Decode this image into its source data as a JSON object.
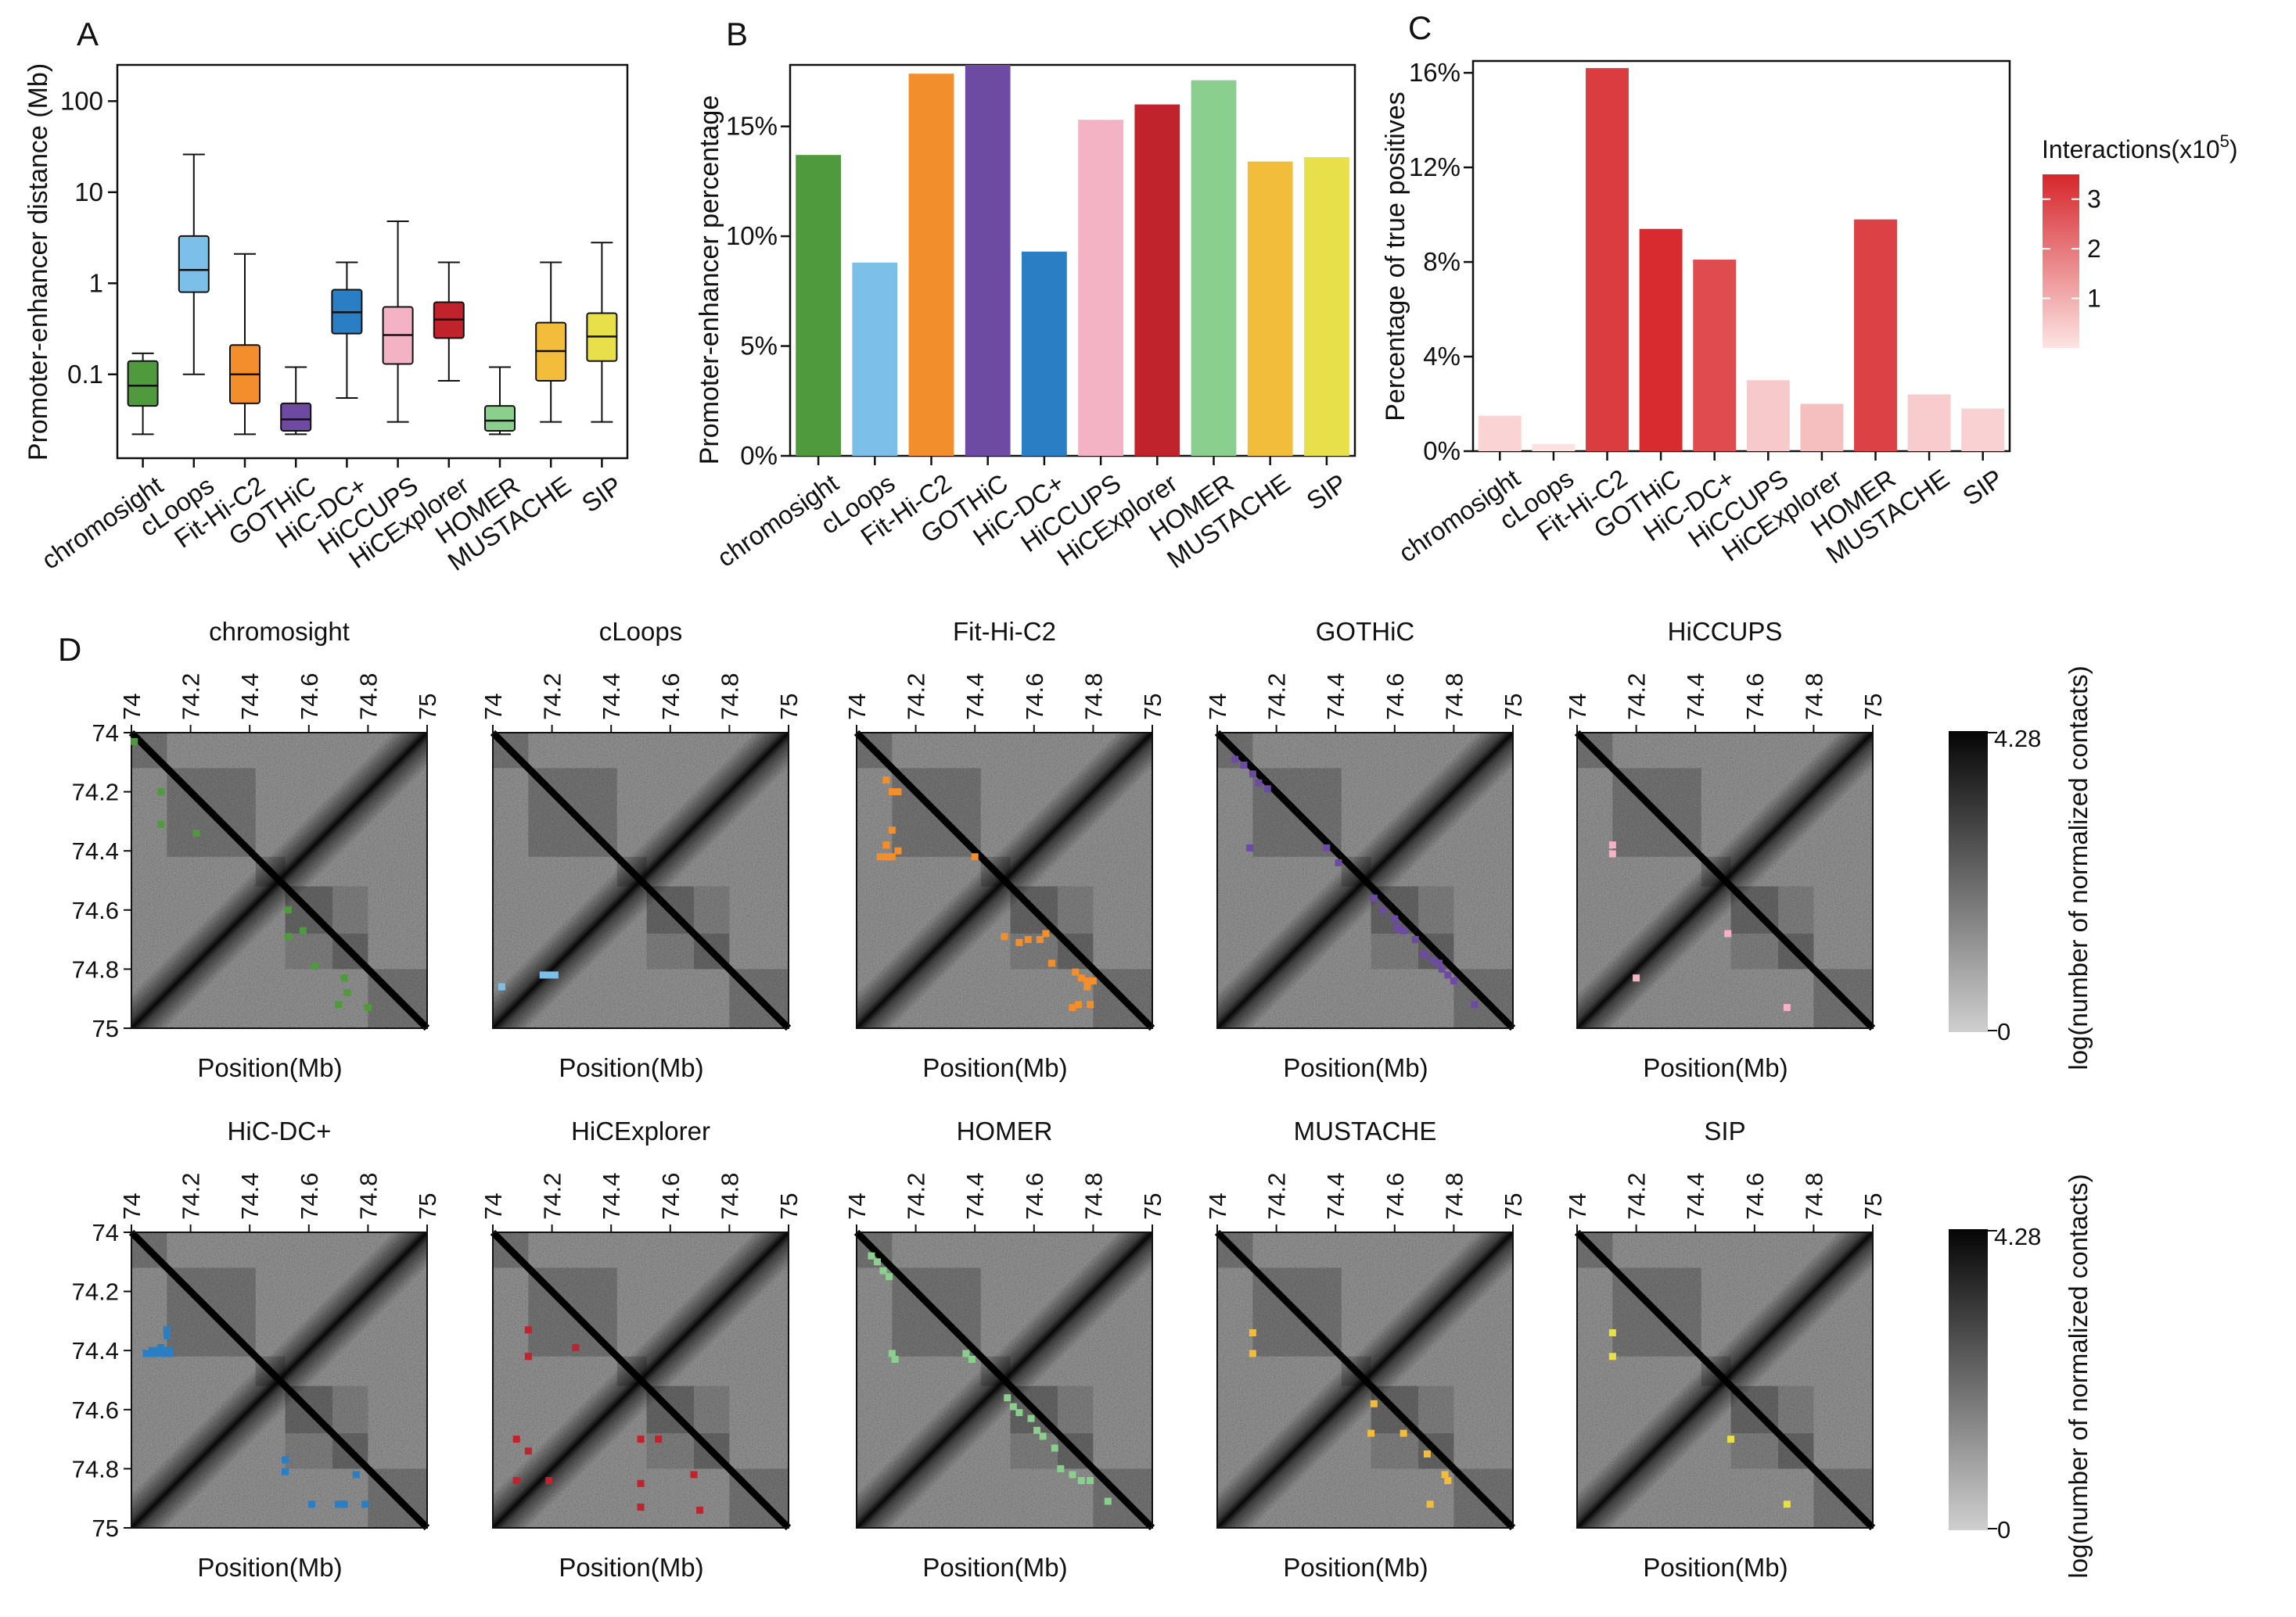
{
  "colors": {
    "methods": {
      "chromosight": "#4e9a3c",
      "cLoops": "#7cc0ea",
      "Fit-Hi-C2": "#f28e2b",
      "GOTHiC": "#6e4ba3",
      "HiC-DC+": "#2a7ec4",
      "HiCCUPS": "#f4b2c5",
      "HiCExplorer": "#c0232c",
      "HOMER": "#8bcf8e",
      "MUSTACHE": "#f2bd3a",
      "SIP": "#e8e04a"
    },
    "heat_low": "#fde4e4",
    "heat_high": "#d6262b"
  },
  "panels": {
    "A": {
      "letter": "A",
      "chart_data": {
        "type": "boxplot",
        "ylabel": "Promoter-enhancer distance (Mb)",
        "yscale": "log10",
        "ylim": [
          0.012,
          250
        ],
        "yticks": [
          0.1,
          1,
          10,
          100
        ],
        "ytick_labels": [
          "0.1",
          "1",
          "10",
          "100"
        ],
        "categories": [
          "chromosight",
          "cLoops",
          "Fit-Hi-C2",
          "GOTHiC",
          "HiC-DC+",
          "HiCCUPS",
          "HiCExplorer",
          "HOMER",
          "MUSTACHE",
          "SIP"
        ],
        "boxes": [
          {
            "min": 0.022,
            "q1": 0.045,
            "median": 0.075,
            "q3": 0.14,
            "max": 0.17
          },
          {
            "min": 0.1,
            "q1": 0.8,
            "median": 1.4,
            "q3": 3.3,
            "max": 26
          },
          {
            "min": 0.022,
            "q1": 0.048,
            "median": 0.1,
            "q3": 0.21,
            "max": 2.1
          },
          {
            "min": 0.022,
            "q1": 0.024,
            "median": 0.032,
            "q3": 0.048,
            "max": 0.12
          },
          {
            "min": 0.055,
            "q1": 0.28,
            "median": 0.48,
            "q3": 0.85,
            "max": 1.7
          },
          {
            "min": 0.03,
            "q1": 0.13,
            "median": 0.27,
            "q3": 0.55,
            "max": 4.8
          },
          {
            "min": 0.085,
            "q1": 0.25,
            "median": 0.4,
            "q3": 0.62,
            "max": 1.7
          },
          {
            "min": 0.022,
            "q1": 0.024,
            "median": 0.031,
            "q3": 0.045,
            "max": 0.12
          },
          {
            "min": 0.03,
            "q1": 0.085,
            "median": 0.18,
            "q3": 0.37,
            "max": 1.7
          },
          {
            "min": 0.03,
            "q1": 0.14,
            "median": 0.26,
            "q3": 0.47,
            "max": 2.8
          }
        ]
      }
    },
    "B": {
      "letter": "B",
      "chart_data": {
        "type": "bar",
        "ylabel": "Promoter-enhancer percentage",
        "ylim": [
          0,
          17.8
        ],
        "yticks": [
          0,
          5,
          10,
          15
        ],
        "ytick_labels": [
          "0%",
          "5%",
          "10%",
          "15%"
        ],
        "categories": [
          "chromosight",
          "cLoops",
          "Fit-Hi-C2",
          "GOTHiC",
          "HiC-DC+",
          "HiCCUPS",
          "HiCExplorer",
          "HOMER",
          "MUSTACHE",
          "SIP"
        ],
        "values": [
          13.7,
          8.8,
          17.4,
          17.8,
          9.3,
          15.3,
          16.0,
          17.1,
          13.4,
          13.6
        ]
      }
    },
    "C": {
      "letter": "C",
      "chart_data": {
        "type": "bar",
        "ylabel": "Percentage of true positives",
        "ylim": [
          0,
          16.5
        ],
        "yticks": [
          0,
          4,
          8,
          12,
          16
        ],
        "ytick_labels": [
          "0%",
          "4%",
          "8%",
          "12%",
          "16%"
        ],
        "categories": [
          "chromosight",
          "cLoops",
          "Fit-Hi-C2",
          "GOTHiC",
          "HiC-DC+",
          "HiCCUPS",
          "HiCExplorer",
          "HOMER",
          "MUSTACHE",
          "SIP"
        ],
        "values": [
          1.5,
          0.3,
          16.2,
          9.4,
          8.1,
          3.0,
          2.0,
          9.8,
          2.4,
          1.8
        ],
        "interactions_x1e5": [
          0.3,
          0.05,
          3.1,
          3.4,
          2.8,
          0.5,
          0.7,
          3.0,
          0.45,
          0.35
        ],
        "legend": {
          "title": "Interactions(x10",
          "title_exp": "5",
          "title_close": ")",
          "ticks": [
            "3",
            "2",
            "1"
          ],
          "range": [
            0,
            3.5
          ]
        }
      }
    },
    "D": {
      "letter": "D",
      "axis_ticks": [
        "74",
        "74.2",
        "74.4",
        "74.6",
        "74.8",
        "75"
      ],
      "tick_values": [
        74,
        74.2,
        74.4,
        74.6,
        74.8,
        75
      ],
      "range_mb": [
        74,
        75
      ],
      "xlabel": "Position(Mb)",
      "colorbar": {
        "label": "log(number of normalized contacts)",
        "max": "4.28",
        "min": "0"
      },
      "heatmaps": [
        {
          "title": "chromosight",
          "method": "chromosight",
          "loops": [
            [
              74.01,
              74.03
            ],
            [
              74.1,
              74.2
            ],
            [
              74.1,
              74.31
            ],
            [
              74.22,
              74.34
            ],
            [
              74.53,
              74.6
            ],
            [
              74.53,
              74.69
            ],
            [
              74.58,
              74.67
            ],
            [
              74.62,
              74.79
            ],
            [
              74.72,
              74.83
            ],
            [
              74.73,
              74.88
            ],
            [
              74.8,
              74.93
            ],
            [
              74.7,
              74.92
            ]
          ]
        },
        {
          "title": "cLoops",
          "method": "cLoops",
          "loops": [
            [
              74.17,
              74.82
            ],
            [
              74.19,
              74.82
            ],
            [
              74.21,
              74.82
            ],
            [
              74.03,
              74.86
            ]
          ]
        },
        {
          "title": "Fit-Hi-C2",
          "method": "Fit-Hi-C2",
          "loops": [
            [
              74.1,
              74.16
            ],
            [
              74.12,
              74.2
            ],
            [
              74.14,
              74.2
            ],
            [
              74.1,
              74.38
            ],
            [
              74.12,
              74.33
            ],
            [
              74.08,
              74.42
            ],
            [
              74.1,
              74.42
            ],
            [
              74.12,
              74.42
            ],
            [
              74.14,
              74.4
            ],
            [
              74.4,
              74.42
            ],
            [
              74.5,
              74.69
            ],
            [
              74.55,
              74.71
            ],
            [
              74.58,
              74.7
            ],
            [
              74.62,
              74.7
            ],
            [
              74.64,
              74.68
            ],
            [
              74.66,
              74.78
            ],
            [
              74.74,
              74.81
            ],
            [
              74.76,
              74.83
            ],
            [
              74.78,
              74.84
            ],
            [
              74.78,
              74.86
            ],
            [
              74.8,
              74.84
            ],
            [
              74.75,
              74.92
            ],
            [
              74.73,
              74.93
            ],
            [
              74.79,
              74.92
            ]
          ]
        },
        {
          "title": "GOTHiC",
          "method": "GOTHiC",
          "loops": [
            [
              74.06,
              74.09
            ],
            [
              74.09,
              74.11
            ],
            [
              74.12,
              74.14
            ],
            [
              74.14,
              74.17
            ],
            [
              74.17,
              74.19
            ],
            [
              74.11,
              74.39
            ],
            [
              74.37,
              74.39
            ],
            [
              74.41,
              74.44
            ],
            [
              74.53,
              74.56
            ],
            [
              74.56,
              74.6
            ],
            [
              74.6,
              74.63
            ],
            [
              74.61,
              74.66
            ],
            [
              74.63,
              74.67
            ],
            [
              74.67,
              74.7
            ],
            [
              74.7,
              74.75
            ],
            [
              74.73,
              74.77
            ],
            [
              74.75,
              74.78
            ],
            [
              74.76,
              74.8
            ],
            [
              74.78,
              74.82
            ],
            [
              74.8,
              74.84
            ],
            [
              74.87,
              74.92
            ]
          ]
        },
        {
          "title": "HiCCUPS",
          "method": "HiCCUPS",
          "loops": [
            [
              74.12,
              74.38
            ],
            [
              74.12,
              74.41
            ],
            [
              74.51,
              74.68
            ],
            [
              74.2,
              74.83
            ],
            [
              74.71,
              74.93
            ]
          ]
        },
        {
          "title": "HiC-DC+",
          "method": "HiC-DC+",
          "loops": [
            [
              74.12,
              74.33
            ],
            [
              74.12,
              74.35
            ],
            [
              74.1,
              74.39
            ],
            [
              74.07,
              74.4
            ],
            [
              74.09,
              74.4
            ],
            [
              74.11,
              74.4
            ],
            [
              74.13,
              74.4
            ],
            [
              74.05,
              74.41
            ],
            [
              74.07,
              74.41
            ],
            [
              74.09,
              74.41
            ],
            [
              74.11,
              74.41
            ],
            [
              74.13,
              74.41
            ],
            [
              74.52,
              74.77
            ],
            [
              74.52,
              74.81
            ],
            [
              74.61,
              74.92
            ],
            [
              74.7,
              74.92
            ],
            [
              74.72,
              74.92
            ],
            [
              74.79,
              74.92
            ],
            [
              74.76,
              74.82
            ]
          ]
        },
        {
          "title": "HiCExplorer",
          "method": "HiCExplorer",
          "loops": [
            [
              74.12,
              74.33
            ],
            [
              74.12,
              74.42
            ],
            [
              74.28,
              74.39
            ],
            [
              74.08,
              74.7
            ],
            [
              74.08,
              74.84
            ],
            [
              74.12,
              74.74
            ],
            [
              74.19,
              74.84
            ],
            [
              74.5,
              74.7
            ],
            [
              74.5,
              74.85
            ],
            [
              74.5,
              74.93
            ],
            [
              74.56,
              74.7
            ],
            [
              74.68,
              74.82
            ],
            [
              74.7,
              74.94
            ]
          ]
        },
        {
          "title": "HOMER",
          "method": "HOMER",
          "loops": [
            [
              74.05,
              74.08
            ],
            [
              74.07,
              74.1
            ],
            [
              74.09,
              74.13
            ],
            [
              74.11,
              74.15
            ],
            [
              74.12,
              74.41
            ],
            [
              74.13,
              74.43
            ],
            [
              74.37,
              74.41
            ],
            [
              74.39,
              74.43
            ],
            [
              74.51,
              74.56
            ],
            [
              74.53,
              74.59
            ],
            [
              74.55,
              74.61
            ],
            [
              74.59,
              74.63
            ],
            [
              74.61,
              74.67
            ],
            [
              74.63,
              74.69
            ],
            [
              74.67,
              74.73
            ],
            [
              74.69,
              74.8
            ],
            [
              74.73,
              74.82
            ],
            [
              74.76,
              74.84
            ],
            [
              74.79,
              74.84
            ],
            [
              74.85,
              74.91
            ]
          ]
        },
        {
          "title": "MUSTACHE",
          "method": "MUSTACHE",
          "loops": [
            [
              74.12,
              74.34
            ],
            [
              74.12,
              74.41
            ],
            [
              74.53,
              74.58
            ],
            [
              74.52,
              74.68
            ],
            [
              74.63,
              74.68
            ],
            [
              74.71,
              74.75
            ],
            [
              74.77,
              74.82
            ],
            [
              74.78,
              74.84
            ],
            [
              74.72,
              74.92
            ]
          ]
        },
        {
          "title": "SIP",
          "method": "SIP",
          "loops": [
            [
              74.12,
              74.34
            ],
            [
              74.12,
              74.42
            ],
            [
              74.52,
              74.7
            ],
            [
              74.71,
              74.92
            ]
          ]
        }
      ]
    }
  }
}
